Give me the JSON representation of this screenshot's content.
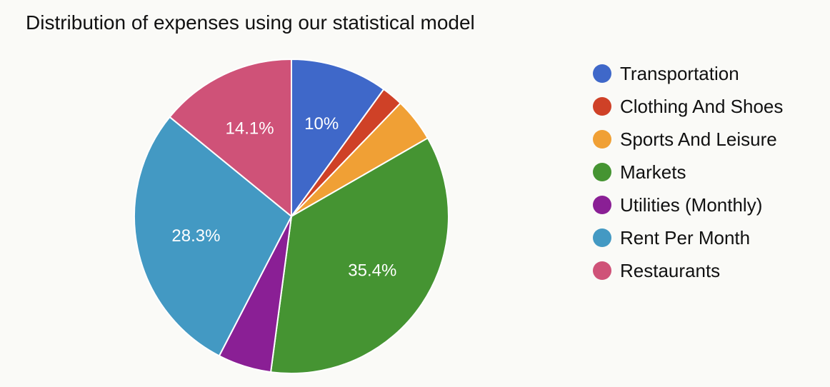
{
  "chart_data": {
    "type": "pie",
    "title": "Distribution of expenses using our statistical model",
    "legend_position": "right",
    "slices": [
      {
        "name": "Transportation",
        "value": 10.0,
        "label": "10%",
        "color": "#3f68c9"
      },
      {
        "name": "Clothing And Shoes",
        "value": 2.2,
        "label": "",
        "color": "#cf4127"
      },
      {
        "name": "Sports And Leisure",
        "value": 4.5,
        "label": "",
        "color": "#f0a035"
      },
      {
        "name": "Markets",
        "value": 35.4,
        "label": "35.4%",
        "color": "#459432"
      },
      {
        "name": "Utilities (Monthly)",
        "value": 5.5,
        "label": "",
        "color": "#8a1f95"
      },
      {
        "name": "Rent Per Month",
        "value": 28.3,
        "label": "28.3%",
        "color": "#4399c3"
      },
      {
        "name": "Restaurants",
        "value": 14.1,
        "label": "14.1%",
        "color": "#cf5278"
      }
    ]
  }
}
